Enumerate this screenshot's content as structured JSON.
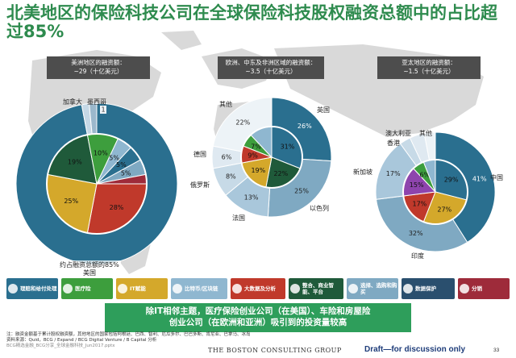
{
  "title": "北美地区的保险科技公司在全球保险科技股权融资总额中的占比超过85%",
  "chart_data": {
    "type": "pie",
    "legend_categories": [
      {
        "label": "理赔和给付处理",
        "color": "#2a6f8f"
      },
      {
        "label": "医疗险",
        "color": "#3d9e3d"
      },
      {
        "label": "IT赋能",
        "color": "#d4a82b"
      },
      {
        "label": "比特币/区块链",
        "color": "#8fb7d0"
      },
      {
        "label": "大数据及分析",
        "color": "#c0392b"
      },
      {
        "label": "整合、商业智能、平台",
        "color": "#1f5a3a"
      },
      {
        "label": "选择、选购和购买",
        "color": "#7fa9c2"
      },
      {
        "label": "数据保护",
        "color": "#2a4f6e"
      },
      {
        "label": "分销",
        "color": "#9e2b3a"
      }
    ],
    "charts": [
      {
        "region": "北美地区",
        "box_title": "美洲地区的融资额：",
        "box_value": "~29（十亿美元）",
        "outer_slices": [
          {
            "label": "美国",
            "value": 97
          },
          {
            "label": "加拿大",
            "value": 1.5
          },
          {
            "label": "墨西哥",
            "value": 1.5
          }
        ],
        "inner_slices": [
          {
            "value": 28,
            "label": "28%"
          },
          {
            "value": 25,
            "label": "25%"
          },
          {
            "value": 19,
            "label": "19%"
          },
          {
            "value": 10,
            "label": "10%"
          },
          {
            "value": 5,
            "label": "5%"
          },
          {
            "value": 5,
            "label": "5%"
          },
          {
            "value": 5,
            "label": "5%"
          },
          {
            "value": 3,
            "label": ""
          }
        ],
        "center_tag": "1",
        "annotation": "约占融资总额的85%"
      },
      {
        "region": "欧洲、中东及非洲区域",
        "box_title": "欧洲、中东及非洲区域的融资额：",
        "box_value": "~3.5（十亿美元）",
        "outer_slices": [
          {
            "label": "英国",
            "value": 26
          },
          {
            "label": "以色列",
            "value": 25
          },
          {
            "label": "法国",
            "value": 13
          },
          {
            "label": "俄罗斯",
            "value": 8
          },
          {
            "label": "德国",
            "value": 6
          },
          {
            "label": "其他",
            "value": 22
          }
        ],
        "outer_value_labels": [
          "26%",
          "25%",
          "13%",
          "8%",
          "6%",
          "22%"
        ],
        "inner_slices": [
          {
            "value": 31,
            "label": "31%"
          },
          {
            "value": 22,
            "label": "22%"
          },
          {
            "value": 19,
            "label": "19%"
          },
          {
            "value": 9,
            "label": "9%"
          },
          {
            "value": 7,
            "label": "7%"
          },
          {
            "value": 12,
            "label": ""
          }
        ]
      },
      {
        "region": "亚太地区",
        "box_title": "亚太地区的融资额：",
        "box_value": "~1.5（十亿美元）",
        "outer_slices": [
          {
            "label": "中国",
            "value": 41
          },
          {
            "label": "印度",
            "value": 32
          },
          {
            "label": "新加坡",
            "value": 17
          },
          {
            "label": "香港",
            "value": 3
          },
          {
            "label": "澳大利亚",
            "value": 4
          },
          {
            "label": "其他",
            "value": 3
          }
        ],
        "outer_value_labels": [
          "41%",
          "32%",
          "17%",
          "",
          "",
          ""
        ],
        "inner_slices": [
          {
            "value": 29,
            "label": "29%"
          },
          {
            "value": 27,
            "label": "27%"
          },
          {
            "value": 17,
            "label": "17%"
          },
          {
            "value": 15,
            "label": "15%"
          },
          {
            "value": 6,
            "label": "6%"
          },
          {
            "value": 6,
            "label": ""
          }
        ]
      }
    ]
  },
  "summary": {
    "line1": "除IT相邻主题，医疗保险创业公司（在美国）、车险和房屋险",
    "line2": "创业公司（在欧洲和亚洲）吸引到的投资量较高"
  },
  "note": {
    "line1": "注：融资金额基于累计股权融资额，其他地区的国家包括阿根廷、巴西、智利、厄瓜多尔、巴巴多斯、肯尼亚、巴拿马、冰岛",
    "line2": "资料来源：Quid，BCG / Expand / BCG Digital Venture / B Capital 分析",
    "line3": "BCG精选金融_BCG分享_全球金融科技_Jun2017.pptx"
  },
  "footer": {
    "logo": "THE BOSTON CONSULTING GROUP",
    "draft": "Draft—for discussion only",
    "page": "33"
  }
}
